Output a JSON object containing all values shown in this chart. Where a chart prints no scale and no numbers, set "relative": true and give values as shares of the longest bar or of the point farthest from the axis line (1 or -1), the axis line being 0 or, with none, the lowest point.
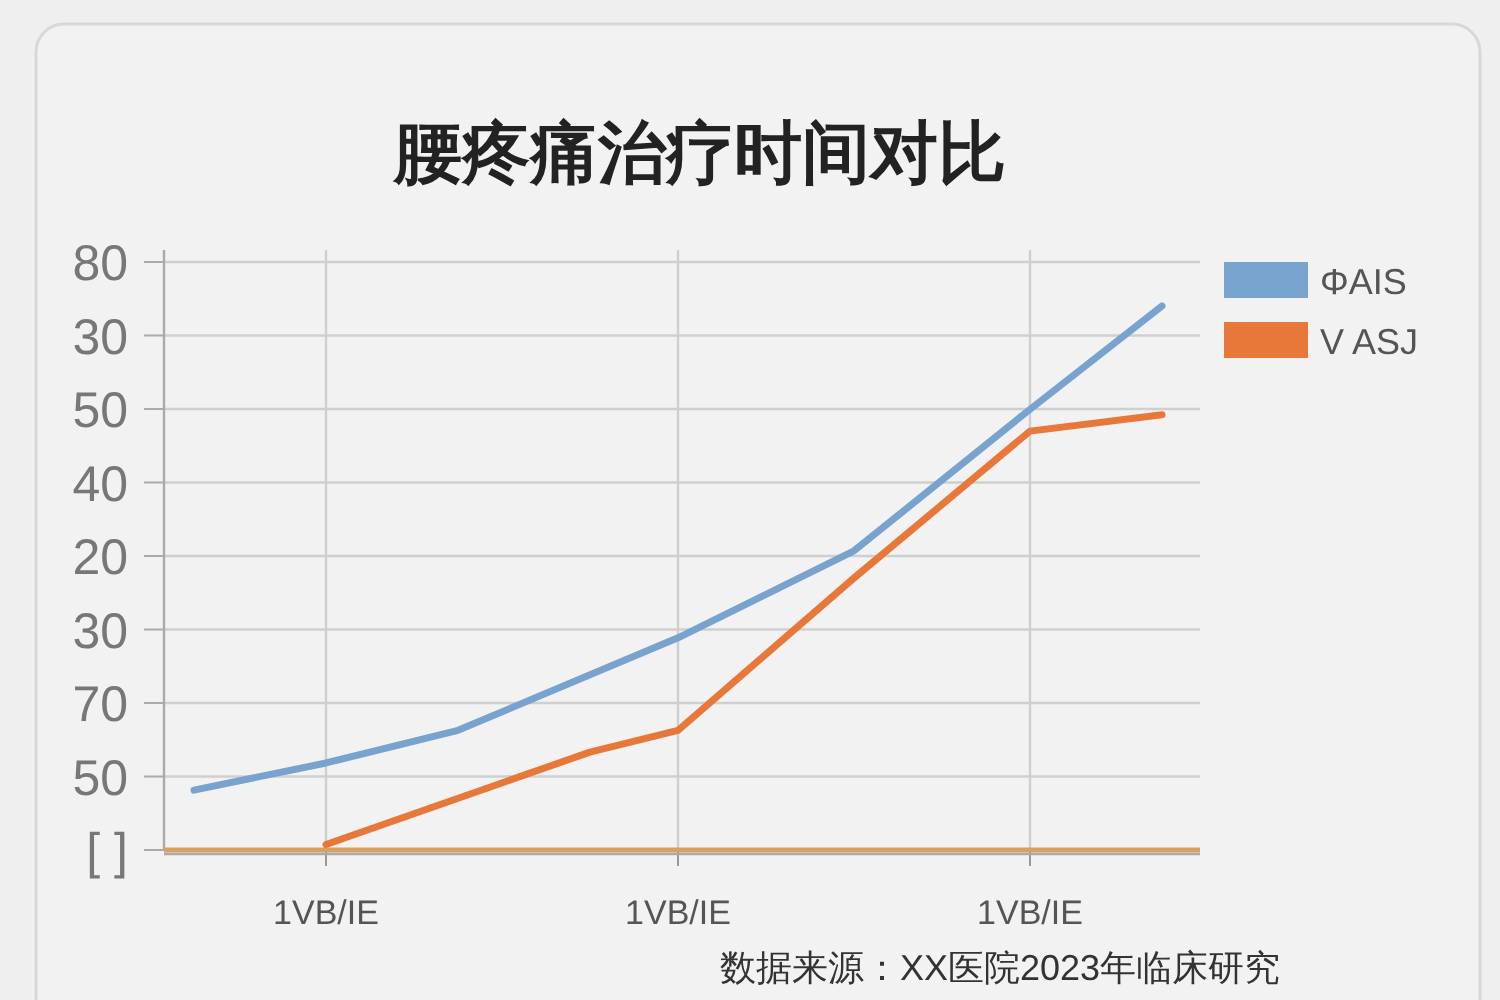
{
  "chart_data": {
    "type": "line",
    "title": "腰疼痛治疗时间对比",
    "annotations": [
      "数据来源：XX医院2023年临床研究",
      "80",
      "30",
      "50",
      "40",
      "20",
      "30",
      "70",
      "50",
      "[ ]"
    ],
    "categories": [
      null,
      null,
      null,
      "1VB/IE",
      null,
      null,
      null,
      null,
      null,
      null,
      null,
      "1VB/IE",
      null,
      null,
      null,
      null,
      null,
      null,
      null,
      "1VB/IE",
      null,
      null,
      null
    ],
    "relative": true,
    "grid": true,
    "legend": "right",
    "series": [
      {
        "name": "ΦAIS",
        "color": "#79a3cf",
        "values": [
          0.11,
          null,
          null,
          0.16,
          null,
          null,
          0.22,
          null,
          null,
          null,
          null,
          0.39,
          null,
          null,
          null,
          0.55,
          null,
          null,
          null,
          0.81,
          null,
          null,
          1
        ]
      },
      {
        "name": "V ASJ",
        "color": "#e8783a",
        "values": [
          null,
          null,
          null,
          0.01,
          null,
          null,
          null,
          null,
          null,
          0.18,
          null,
          0.22,
          null,
          null,
          null,
          0.5,
          null,
          null,
          null,
          0.77,
          null,
          null,
          0.8
        ]
      }
    ],
    "ref_lines": [
      {
        "axis": "y",
        "value": 0,
        "color": "#d9a066"
      }
    ]
  }
}
